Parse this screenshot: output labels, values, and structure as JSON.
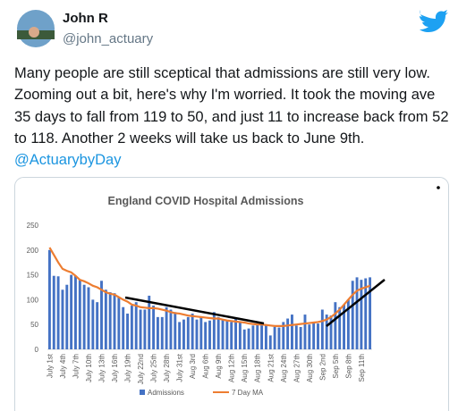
{
  "tweet": {
    "name": "John R",
    "handle": "@john_actuary",
    "text": "Many people are still sceptical that admissions are still very low. Zooming out a bit, here's why I'm worried. It took the moving ave 35 days to fall from 119 to 50, and just 11 to increase back from 52 to 118. Another 2 weeks will take us back to June 9th.",
    "link": "@ActuarybyDay"
  },
  "chart_data": {
    "type": "bar",
    "title": "England COVID Hospital Admissions",
    "categories": [
      "July 1st",
      null,
      null,
      "July 4th",
      null,
      null,
      "July 7th",
      null,
      null,
      "July 10th",
      null,
      null,
      "July 13th",
      null,
      null,
      "July 16th",
      null,
      null,
      "July 19th",
      null,
      null,
      "July 22nd",
      null,
      null,
      "July 25th",
      null,
      null,
      "July 28th",
      null,
      null,
      "July 31st",
      null,
      null,
      "Aug 3rd",
      null,
      null,
      "Aug 6th",
      null,
      null,
      "Aug 9th",
      null,
      null,
      "Aug 12th",
      null,
      null,
      "Aug 15th",
      null,
      null,
      "Aug 18th",
      null,
      null,
      "Aug 21st",
      null,
      null,
      "Aug 24th",
      null,
      null,
      "Aug 27th",
      null,
      null,
      "Aug 30th",
      null,
      null,
      "Sep 2nd",
      null,
      null,
      "Sep 5th",
      null,
      null,
      "Sep 8th",
      null,
      null,
      "Sep 11th",
      null,
      null
    ],
    "series": [
      {
        "name": "Admissions",
        "type": "bar",
        "color": "#4472c4",
        "values": [
          200,
          148,
          147,
          120,
          130,
          150,
          148,
          140,
          130,
          125,
          100,
          95,
          138,
          120,
          115,
          113,
          105,
          85,
          72,
          88,
          95,
          80,
          80,
          108,
          88,
          65,
          65,
          85,
          80,
          75,
          55,
          60,
          65,
          72,
          60,
          65,
          55,
          58,
          75,
          65,
          60,
          58,
          55,
          62,
          55,
          40,
          42,
          48,
          50,
          52,
          48,
          28,
          45,
          44,
          55,
          62,
          70,
          48,
          45,
          70,
          50,
          55,
          52,
          80,
          70,
          68,
          95,
          85,
          90,
          100,
          138,
          145,
          140,
          143,
          145
        ]
      },
      {
        "name": "7 Day MA",
        "type": "line",
        "color": "#ed7d31",
        "values": [
          205,
          190,
          175,
          162,
          158,
          155,
          148,
          140,
          137,
          133,
          128,
          125,
          120,
          115,
          112,
          110,
          105,
          100,
          96,
          90,
          88,
          85,
          84,
          83,
          83,
          82,
          80,
          78,
          75,
          73,
          72,
          70,
          68,
          67,
          66,
          65,
          64,
          63,
          62,
          62,
          60,
          58,
          57,
          56,
          55,
          54,
          52,
          51,
          50,
          50,
          49,
          48,
          47,
          47,
          47,
          48,
          49,
          50,
          51,
          52,
          53,
          54,
          55,
          57,
          60,
          65,
          72,
          80,
          90,
          100,
          110,
          118,
          122,
          125,
          128
        ]
      }
    ],
    "ylim": [
      0,
      250
    ],
    "yticks": [
      0,
      50,
      100,
      150,
      200,
      250
    ],
    "grid": false,
    "legend": "bottom"
  }
}
